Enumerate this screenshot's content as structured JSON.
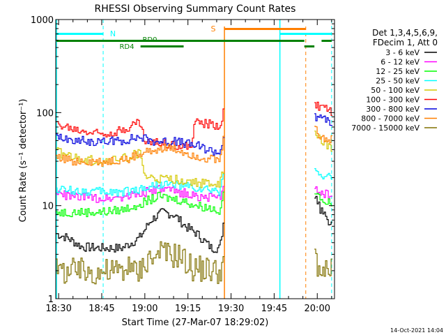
{
  "chart_data": {
    "type": "line",
    "title": "RHESSI Observing Summary Count Rates",
    "xlabel": "Start Time (27-Mar-07 18:29:02)",
    "ylabel": "Count Rate (s⁻¹ detector⁻¹)",
    "yscale": "log",
    "ylim": [
      1,
      1000
    ],
    "xlim": [
      "18:29",
      "20:06"
    ],
    "x_ticks": [
      "18:30",
      "18:45",
      "19:00",
      "19:15",
      "19:30",
      "19:45",
      "20:00"
    ],
    "y_ticks": [
      "1",
      "10",
      "100",
      "1000"
    ],
    "timestamp": "14-Oct-2021 14:04",
    "legend": {
      "position": "right",
      "header": [
        "Det 1,3,4,5,6,9,",
        "FDecim 1, Att 0"
      ],
      "entries": [
        {
          "label": "3 - 6 keV",
          "color": "#000000"
        },
        {
          "label": "6 - 12 keV",
          "color": "#ff00ff"
        },
        {
          "label": "12 - 25 keV",
          "color": "#00ff00"
        },
        {
          "label": "25 - 50 keV",
          "color": "#00ffff"
        },
        {
          "label": "50 - 100 keV",
          "color": "#d4c800"
        },
        {
          "label": "100 - 300 keV",
          "color": "#ff0000"
        },
        {
          "label": "300 - 800 keV",
          "color": "#0000dd"
        },
        {
          "label": "800 - 7000 keV",
          "color": "#ff7f00"
        },
        {
          "label": "7000 - 15000 keV",
          "color": "#807000"
        }
      ]
    },
    "flags": [
      {
        "label": "N",
        "color": "#00ffff"
      },
      {
        "label": "S",
        "color": "#ff7f00"
      },
      {
        "label": "RD0",
        "color": "#008000"
      },
      {
        "label": "RD4",
        "color": "#008000"
      }
    ],
    "series": [
      {
        "name": "3 - 6 keV",
        "color": "#000000",
        "points": [
          [
            "18:29",
            5
          ],
          [
            "18:33",
            4.5
          ],
          [
            "18:38",
            3.6
          ],
          [
            "18:45",
            3.5
          ],
          [
            "18:52",
            3.5
          ],
          [
            "18:58",
            4.5
          ],
          [
            "19:02",
            7
          ],
          [
            "19:06",
            8.5
          ],
          [
            "19:10",
            8
          ],
          [
            "19:14",
            6
          ],
          [
            "19:18",
            5
          ],
          [
            "19:23",
            3.5
          ],
          [
            "19:26",
            3.5
          ],
          [
            "19:27.6",
            8
          ]
        ]
      },
      {
        "name": "3 - 6 keV",
        "color": "#000000",
        "points": [
          [
            "19:59",
            12
          ],
          [
            "20:00",
            10.5
          ],
          [
            "20:02",
            8
          ],
          [
            "20:04",
            6.5
          ],
          [
            "20:05",
            6.5
          ]
        ]
      },
      {
        "name": "6 - 12 keV",
        "color": "#ff00ff",
        "points": [
          [
            "18:29",
            13.5
          ],
          [
            "18:35",
            12.5
          ],
          [
            "18:45",
            12
          ],
          [
            "18:52",
            12.5
          ],
          [
            "18:58",
            13.5
          ],
          [
            "19:05",
            15
          ],
          [
            "19:12",
            14
          ],
          [
            "19:18",
            12.5
          ],
          [
            "19:26",
            11.8
          ],
          [
            "19:27.6",
            20
          ]
        ]
      },
      {
        "name": "6 - 12 keV",
        "color": "#ff00ff",
        "points": [
          [
            "19:59",
            15
          ],
          [
            "20:02",
            13.5
          ],
          [
            "20:05",
            12.5
          ]
        ]
      },
      {
        "name": "12 - 25 keV",
        "color": "#00ff00",
        "points": [
          [
            "18:29",
            8.5
          ],
          [
            "18:35",
            8.5
          ],
          [
            "18:45",
            8.5
          ],
          [
            "18:52",
            9
          ],
          [
            "18:58",
            10.5
          ],
          [
            "19:05",
            12.5
          ],
          [
            "19:12",
            11.5
          ],
          [
            "19:18",
            10
          ],
          [
            "19:26",
            9
          ],
          [
            "19:27.6",
            15
          ]
        ]
      },
      {
        "name": "12 - 25 keV",
        "color": "#00ff00",
        "points": [
          [
            "19:59",
            13
          ],
          [
            "20:02",
            11.5
          ],
          [
            "20:05",
            10
          ]
        ]
      },
      {
        "name": "25 - 50 keV",
        "color": "#00ffff",
        "points": [
          [
            "18:29",
            15
          ],
          [
            "18:35",
            14.5
          ],
          [
            "18:45",
            14
          ],
          [
            "18:52",
            14
          ],
          [
            "18:58",
            15
          ],
          [
            "19:05",
            17
          ],
          [
            "19:12",
            16.5
          ],
          [
            "19:18",
            15
          ],
          [
            "19:26",
            14
          ],
          [
            "19:27.6",
            26
          ]
        ]
      },
      {
        "name": "25 - 50 keV",
        "color": "#00ffff",
        "points": [
          [
            "19:59",
            24
          ],
          [
            "20:02",
            21
          ],
          [
            "20:05",
            20
          ]
        ]
      },
      {
        "name": "50 - 100 keV",
        "color": "#d4c800",
        "points": [
          [
            "18:29",
            38
          ],
          [
            "18:36",
            32
          ],
          [
            "18:45",
            30
          ],
          [
            "18:52",
            32
          ],
          [
            "18:58",
            37
          ],
          [
            "19:00",
            20
          ],
          [
            "19:06",
            19
          ],
          [
            "19:12",
            19
          ],
          [
            "19:18",
            17.5
          ],
          [
            "19:26",
            17
          ],
          [
            "19:27.6",
            28
          ]
        ]
      },
      {
        "name": "50 - 100 keV",
        "color": "#d4c800",
        "points": [
          [
            "19:59",
            60
          ],
          [
            "20:02",
            50
          ],
          [
            "20:05",
            40
          ]
        ]
      },
      {
        "name": "100 - 300 keV",
        "color": "#ff0000",
        "points": [
          [
            "18:29",
            75
          ],
          [
            "18:36",
            65
          ],
          [
            "18:45",
            60
          ],
          [
            "18:52",
            65
          ],
          [
            "18:58",
            80
          ],
          [
            "19:00",
            48
          ],
          [
            "19:07",
            47
          ],
          [
            "19:14",
            43
          ],
          [
            "19:16",
            42
          ],
          [
            "19:17",
            78
          ],
          [
            "19:22",
            75
          ],
          [
            "19:26",
            72
          ],
          [
            "19:27.6",
            120
          ]
        ]
      },
      {
        "name": "100 - 300 keV",
        "color": "#ff0000",
        "points": [
          [
            "19:59",
            120
          ],
          [
            "20:02",
            110
          ],
          [
            "20:05",
            100
          ]
        ]
      },
      {
        "name": "300 - 800 keV",
        "color": "#0000dd",
        "points": [
          [
            "18:29",
            55
          ],
          [
            "18:36",
            50
          ],
          [
            "18:45",
            48
          ],
          [
            "18:52",
            50
          ],
          [
            "18:58",
            55
          ],
          [
            "19:02",
            50
          ],
          [
            "19:07",
            49
          ],
          [
            "19:12",
            48
          ],
          [
            "19:18",
            44
          ],
          [
            "19:22",
            40
          ],
          [
            "19:26",
            37
          ],
          [
            "19:27.6",
            65
          ]
        ]
      },
      {
        "name": "300 - 800 keV",
        "color": "#0000dd",
        "points": [
          [
            "19:59",
            90
          ],
          [
            "20:02",
            85
          ],
          [
            "20:05",
            80
          ]
        ]
      },
      {
        "name": "800 - 7000 keV",
        "color": "#ff7f00",
        "points": [
          [
            "18:29",
            32
          ],
          [
            "18:36",
            30
          ],
          [
            "18:45",
            29
          ],
          [
            "18:52",
            31
          ],
          [
            "18:58",
            35
          ],
          [
            "19:02",
            40
          ],
          [
            "19:07",
            42
          ],
          [
            "19:12",
            39
          ],
          [
            "19:18",
            34
          ],
          [
            "19:26",
            30
          ],
          [
            "19:27.6",
            60
          ]
        ]
      },
      {
        "name": "800 - 7000 keV",
        "color": "#ff7f00",
        "points": [
          [
            "19:59",
            65
          ],
          [
            "20:02",
            55
          ],
          [
            "20:05",
            50
          ]
        ]
      },
      {
        "name": "7000 - 15000 keV",
        "color": "#807000",
        "points": [
          [
            "18:29",
            2
          ],
          [
            "18:36",
            2
          ],
          [
            "18:45",
            2
          ],
          [
            "18:52",
            2
          ],
          [
            "18:58",
            2
          ],
          [
            "19:00",
            2.7
          ],
          [
            "19:06",
            3
          ],
          [
            "19:12",
            3
          ],
          [
            "19:16",
            2.2
          ],
          [
            "19:22",
            2.1
          ],
          [
            "19:26",
            2
          ],
          [
            "19:27.6",
            3
          ]
        ]
      },
      {
        "name": "7000 - 15000 keV",
        "color": "#807000",
        "points": [
          [
            "19:59",
            2.5
          ],
          [
            "20:02",
            2.2
          ],
          [
            "20:05",
            2
          ]
        ]
      }
    ]
  }
}
